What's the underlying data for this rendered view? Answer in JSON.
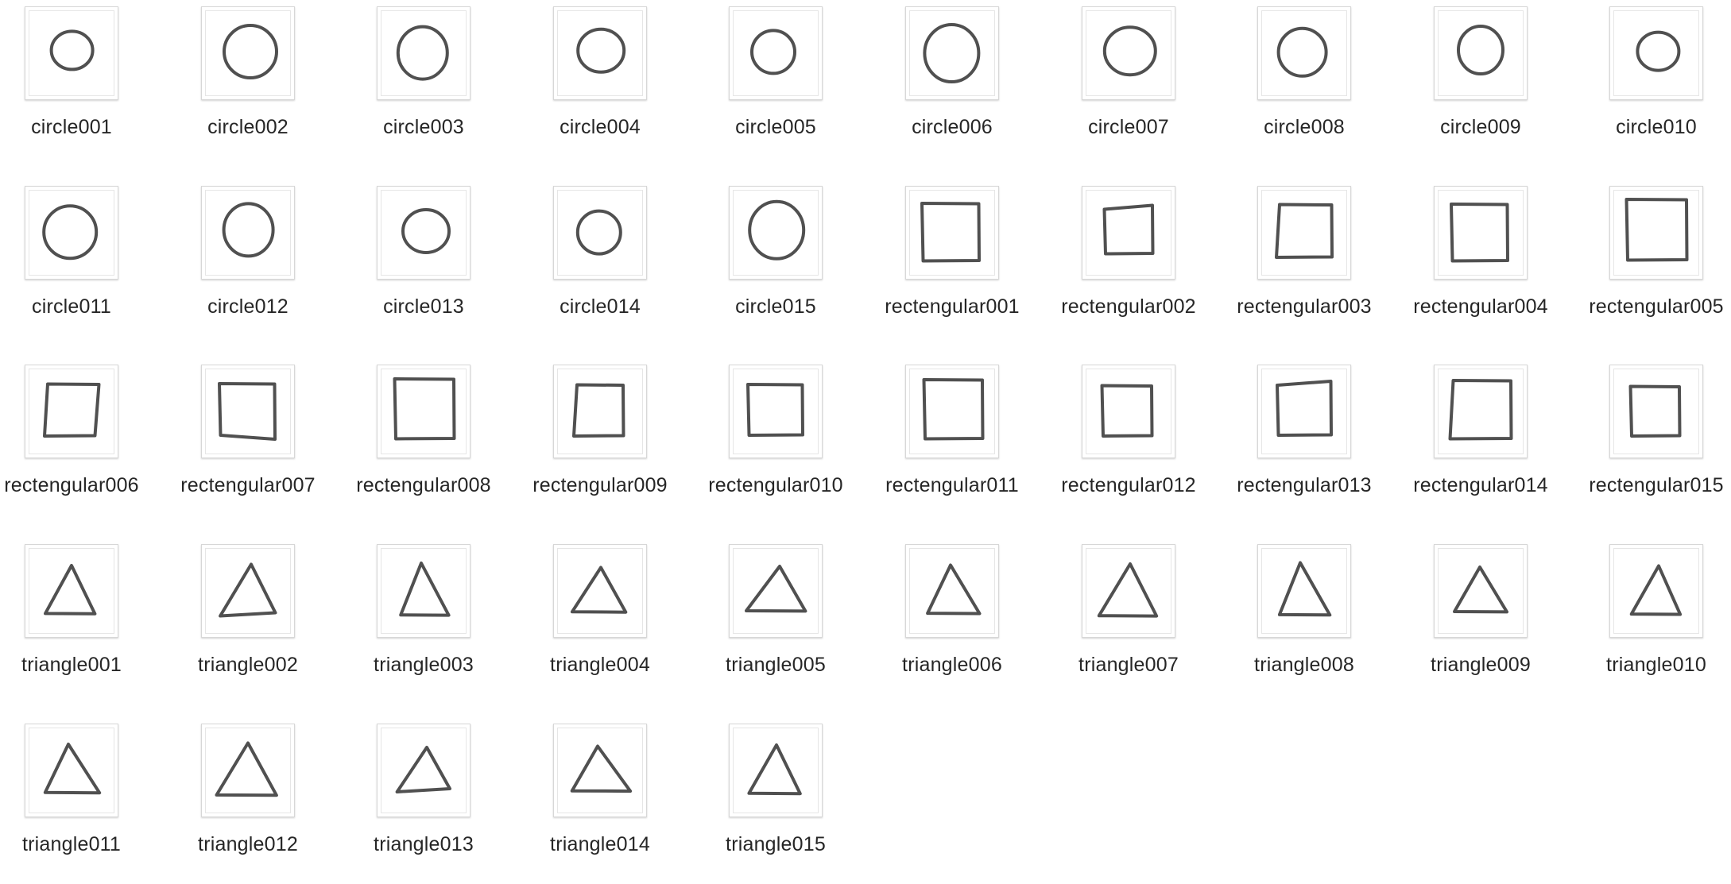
{
  "files": [
    {
      "name": "circle001",
      "icon": "circle-thumbnail-icon",
      "shape": "circle"
    },
    {
      "name": "circle002",
      "icon": "circle-thumbnail-icon",
      "shape": "circle"
    },
    {
      "name": "circle003",
      "icon": "circle-thumbnail-icon",
      "shape": "circle"
    },
    {
      "name": "circle004",
      "icon": "circle-thumbnail-icon",
      "shape": "circle"
    },
    {
      "name": "circle005",
      "icon": "circle-thumbnail-icon",
      "shape": "circle"
    },
    {
      "name": "circle006",
      "icon": "circle-thumbnail-icon",
      "shape": "circle"
    },
    {
      "name": "circle007",
      "icon": "circle-thumbnail-icon",
      "shape": "circle"
    },
    {
      "name": "circle008",
      "icon": "circle-thumbnail-icon",
      "shape": "circle"
    },
    {
      "name": "circle009",
      "icon": "circle-thumbnail-icon",
      "shape": "circle"
    },
    {
      "name": "circle010",
      "icon": "circle-thumbnail-icon",
      "shape": "circle"
    },
    {
      "name": "circle011",
      "icon": "circle-thumbnail-icon",
      "shape": "circle"
    },
    {
      "name": "circle012",
      "icon": "circle-thumbnail-icon",
      "shape": "circle"
    },
    {
      "name": "circle013",
      "icon": "circle-thumbnail-icon",
      "shape": "circle"
    },
    {
      "name": "circle014",
      "icon": "circle-thumbnail-icon",
      "shape": "circle"
    },
    {
      "name": "circle015",
      "icon": "circle-thumbnail-icon",
      "shape": "circle"
    },
    {
      "name": "rectengular001",
      "icon": "rectangle-thumbnail-icon",
      "shape": "rectangle"
    },
    {
      "name": "rectengular002",
      "icon": "rectangle-thumbnail-icon",
      "shape": "rectangle"
    },
    {
      "name": "rectengular003",
      "icon": "rectangle-thumbnail-icon",
      "shape": "rectangle"
    },
    {
      "name": "rectengular004",
      "icon": "rectangle-thumbnail-icon",
      "shape": "rectangle"
    },
    {
      "name": "rectengular005",
      "icon": "rectangle-thumbnail-icon",
      "shape": "rectangle"
    },
    {
      "name": "rectengular006",
      "icon": "rectangle-thumbnail-icon",
      "shape": "rectangle"
    },
    {
      "name": "rectengular007",
      "icon": "rectangle-thumbnail-icon",
      "shape": "rectangle"
    },
    {
      "name": "rectengular008",
      "icon": "rectangle-thumbnail-icon",
      "shape": "rectangle"
    },
    {
      "name": "rectengular009",
      "icon": "rectangle-thumbnail-icon",
      "shape": "rectangle"
    },
    {
      "name": "rectengular010",
      "icon": "rectangle-thumbnail-icon",
      "shape": "rectangle"
    },
    {
      "name": "rectengular011",
      "icon": "rectangle-thumbnail-icon",
      "shape": "rectangle"
    },
    {
      "name": "rectengular012",
      "icon": "rectangle-thumbnail-icon",
      "shape": "rectangle"
    },
    {
      "name": "rectengular013",
      "icon": "rectangle-thumbnail-icon",
      "shape": "rectangle"
    },
    {
      "name": "rectengular014",
      "icon": "rectangle-thumbnail-icon",
      "shape": "rectangle"
    },
    {
      "name": "rectengular015",
      "icon": "rectangle-thumbnail-icon",
      "shape": "rectangle"
    },
    {
      "name": "triangle001",
      "icon": "triangle-thumbnail-icon",
      "shape": "triangle"
    },
    {
      "name": "triangle002",
      "icon": "triangle-thumbnail-icon",
      "shape": "triangle"
    },
    {
      "name": "triangle003",
      "icon": "triangle-thumbnail-icon",
      "shape": "triangle"
    },
    {
      "name": "triangle004",
      "icon": "triangle-thumbnail-icon",
      "shape": "triangle"
    },
    {
      "name": "triangle005",
      "icon": "triangle-thumbnail-icon",
      "shape": "triangle"
    },
    {
      "name": "triangle006",
      "icon": "triangle-thumbnail-icon",
      "shape": "triangle"
    },
    {
      "name": "triangle007",
      "icon": "triangle-thumbnail-icon",
      "shape": "triangle"
    },
    {
      "name": "triangle008",
      "icon": "triangle-thumbnail-icon",
      "shape": "triangle"
    },
    {
      "name": "triangle009",
      "icon": "triangle-thumbnail-icon",
      "shape": "triangle"
    },
    {
      "name": "triangle010",
      "icon": "triangle-thumbnail-icon",
      "shape": "triangle"
    },
    {
      "name": "triangle011",
      "icon": "triangle-thumbnail-icon",
      "shape": "triangle"
    },
    {
      "name": "triangle012",
      "icon": "triangle-thumbnail-icon",
      "shape": "triangle"
    },
    {
      "name": "triangle013",
      "icon": "triangle-thumbnail-icon",
      "shape": "triangle"
    },
    {
      "name": "triangle014",
      "icon": "triangle-thumbnail-icon",
      "shape": "triangle"
    },
    {
      "name": "triangle015",
      "icon": "triangle-thumbnail-icon",
      "shape": "triangle"
    }
  ],
  "colors": {
    "label_text": "#262626",
    "thumb_border": "#d7d7d7",
    "shape_stroke": "#1f1f1f"
  }
}
